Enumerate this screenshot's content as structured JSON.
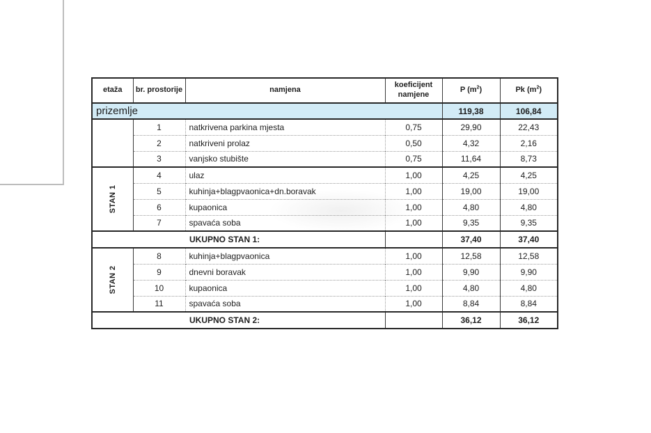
{
  "colors": {
    "highlight_row": "#d2ebf6",
    "border_dark": "#262626",
    "border_dotted": "#9b9b9b",
    "frame_gray": "#bcbcbc"
  },
  "table": {
    "header": {
      "etaza": "etaža",
      "br": "br. prostorije",
      "namjena": "namjena",
      "koef_line1": "koeficijent",
      "koef_line2": "namjene",
      "p_pre": "P (m",
      "p_sup": "2",
      "p_post": ")",
      "pk_pre": "Pk (m",
      "pk_sup": "2",
      "pk_post": ")"
    },
    "prizemlje": {
      "label": "prizemlje",
      "p": "119,38",
      "pk": "106,84"
    },
    "groups": [
      {
        "stan_label": "",
        "rows": [
          {
            "br": "1",
            "namjena": "natkrivena parkina mjesta",
            "koef": "0,75",
            "p": "29,90",
            "pk": "22,43"
          },
          {
            "br": "2",
            "namjena": "natkriveni prolaz",
            "koef": "0,50",
            "p": "4,32",
            "pk": "2,16"
          },
          {
            "br": "3",
            "namjena": "vanjsko stubište",
            "koef": "0,75",
            "p": "11,64",
            "pk": "8,73"
          }
        ]
      },
      {
        "stan_label": "STAN 1",
        "rows": [
          {
            "br": "4",
            "namjena": "ulaz",
            "koef": "1,00",
            "p": "4,25",
            "pk": "4,25"
          },
          {
            "br": "5",
            "namjena": "kuhinja+blagpvaonica+dn.boravak",
            "koef": "1,00",
            "p": "19,00",
            "pk": "19,00"
          },
          {
            "br": "6",
            "namjena": "kupaonica",
            "koef": "1,00",
            "p": "4,80",
            "pk": "4,80"
          },
          {
            "br": "7",
            "namjena": "spavaća soba",
            "koef": "1,00",
            "p": "9,35",
            "pk": "9,35"
          }
        ],
        "total": {
          "label": "UKUPNO STAN 1:",
          "p": "37,40",
          "pk": "37,40"
        }
      },
      {
        "stan_label": "STAN 2",
        "rows": [
          {
            "br": "8",
            "namjena": "kuhinja+blagpvaonica",
            "koef": "1,00",
            "p": "12,58",
            "pk": "12,58"
          },
          {
            "br": "9",
            "namjena": "dnevni boravak",
            "koef": "1,00",
            "p": "9,90",
            "pk": "9,90"
          },
          {
            "br": "10",
            "namjena": "kupaonica",
            "koef": "1,00",
            "p": "4,80",
            "pk": "4,80"
          },
          {
            "br": "11",
            "namjena": "spavaća soba",
            "koef": "1,00",
            "p": "8,84",
            "pk": "8,84"
          }
        ],
        "total": {
          "label": "UKUPNO STAN 2:",
          "p": "36,12",
          "pk": "36,12"
        }
      }
    ]
  }
}
